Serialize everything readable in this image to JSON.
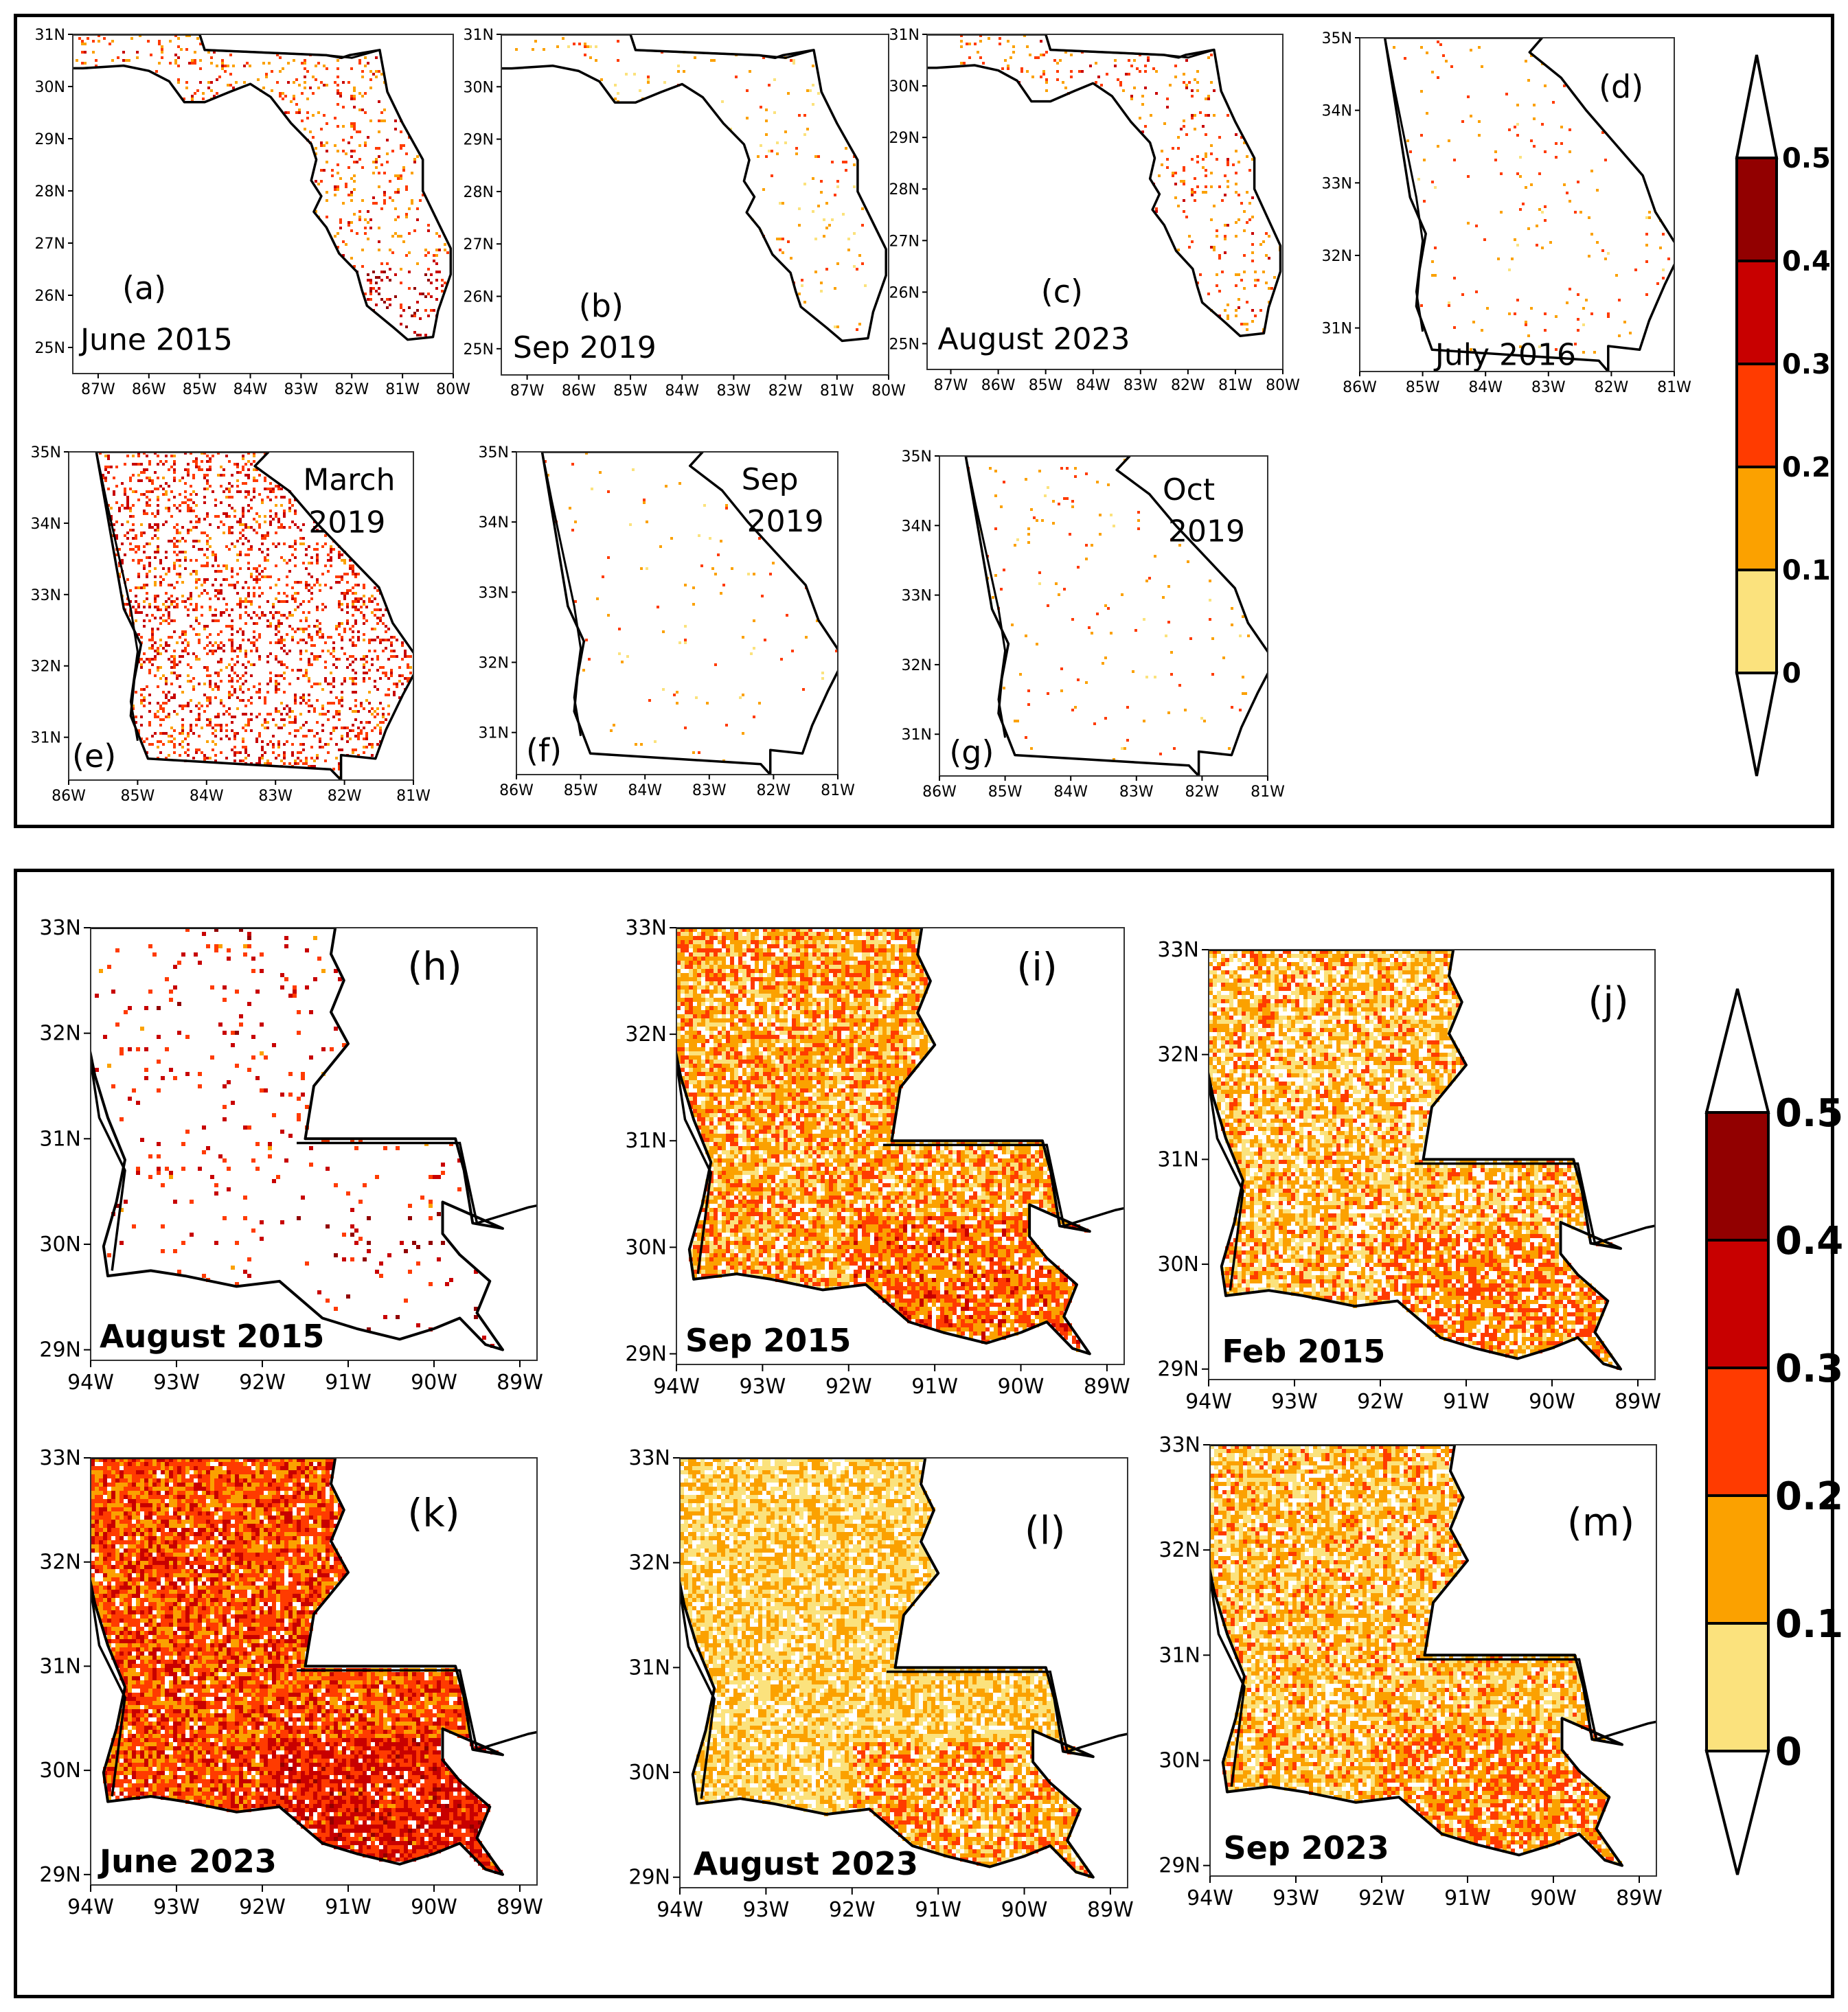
{
  "figure": {
    "top_group": "Florida and Georgia",
    "bottom_group": "Louisiana"
  },
  "colors": {
    "c0": "#fbe27d",
    "c1": "#fba100",
    "c2": "#ff3b00",
    "c3": "#c80000",
    "c4": "#920000"
  },
  "chart_data": [
    {
      "type": "heatmap",
      "id": "a",
      "panel_label": "(a)",
      "date_label": "June 2015",
      "region": "Florida",
      "xlim": [
        -87.5,
        -80
      ],
      "ylim": [
        24.5,
        31
      ],
      "xticks": [
        "87W",
        "86W",
        "85W",
        "84W",
        "83W",
        "82W",
        "81W",
        "80W"
      ],
      "yticks": [
        "25N",
        "26N",
        "27N",
        "28N",
        "29N",
        "30N",
        "31N"
      ],
      "density": 0.11,
      "mean_level": 0.22
    },
    {
      "type": "heatmap",
      "id": "b",
      "panel_label": "(b)",
      "date_label": "Sep 2019",
      "region": "Florida",
      "xlim": [
        -87.5,
        -80
      ],
      "ylim": [
        24.5,
        31
      ],
      "xticks": [
        "87W",
        "86W",
        "85W",
        "84W",
        "83W",
        "82W",
        "81W",
        "80W"
      ],
      "yticks": [
        "25N",
        "26N",
        "27N",
        "28N",
        "29N",
        "30N",
        "31N"
      ],
      "density": 0.03,
      "mean_level": 0.15
    },
    {
      "type": "heatmap",
      "id": "c",
      "panel_label": "(c)",
      "date_label": "August 2023",
      "region": "Florida",
      "xlim": [
        -87.5,
        -80
      ],
      "ylim": [
        24.5,
        31
      ],
      "xticks": [
        "87W",
        "86W",
        "85W",
        "84W",
        "83W",
        "82W",
        "81W",
        "80W"
      ],
      "yticks": [
        "25N",
        "26N",
        "27N",
        "28N",
        "29N",
        "30N",
        "31N"
      ],
      "density": 0.07,
      "mean_level": 0.22
    },
    {
      "type": "heatmap",
      "id": "d",
      "panel_label": "(d)",
      "date_label": "July 2016",
      "region": "Georgia",
      "xlim": [
        -86,
        -81
      ],
      "ylim": [
        30.4,
        35
      ],
      "xticks": [
        "86W",
        "85W",
        "84W",
        "83W",
        "82W",
        "81W"
      ],
      "yticks": [
        "31N",
        "32N",
        "33N",
        "34N",
        "35N"
      ],
      "density": 0.02,
      "mean_level": 0.18
    },
    {
      "type": "heatmap",
      "id": "e",
      "panel_label": "(e)",
      "date_label": "March 2019",
      "region": "Georgia",
      "xlim": [
        -86,
        -81
      ],
      "ylim": [
        30.4,
        35
      ],
      "xticks": [
        "86W",
        "85W",
        "84W",
        "83W",
        "82W",
        "81W"
      ],
      "yticks": [
        "31N",
        "32N",
        "33N",
        "34N",
        "35N"
      ],
      "density": 0.2,
      "mean_level": 0.28
    },
    {
      "type": "heatmap",
      "id": "f",
      "panel_label": "(f)",
      "date_label": "Sep 2019",
      "region": "Georgia",
      "xlim": [
        -86,
        -81
      ],
      "ylim": [
        30.4,
        35
      ],
      "xticks": [
        "86W",
        "85W",
        "84W",
        "83W",
        "82W",
        "81W"
      ],
      "yticks": [
        "31N",
        "32N",
        "33N",
        "34N",
        "35N"
      ],
      "density": 0.01,
      "mean_level": 0.15
    },
    {
      "type": "heatmap",
      "id": "g",
      "panel_label": "(g)",
      "date_label": "Oct 2019",
      "region": "Georgia",
      "xlim": [
        -86,
        -81
      ],
      "ylim": [
        30.4,
        35
      ],
      "xticks": [
        "86W",
        "85W",
        "84W",
        "83W",
        "82W",
        "81W"
      ],
      "yticks": [
        "31N",
        "32N",
        "33N",
        "34N",
        "35N"
      ],
      "density": 0.015,
      "mean_level": 0.18
    },
    {
      "type": "heatmap",
      "id": "h",
      "panel_label": "(h)",
      "date_label": "August 2015",
      "region": "Louisiana",
      "xlim": [
        -94,
        -88.8
      ],
      "ylim": [
        28.9,
        33
      ],
      "xticks": [
        "94W",
        "93W",
        "92W",
        "91W",
        "90W",
        "89W"
      ],
      "yticks": [
        "29N",
        "30N",
        "31N",
        "32N",
        "33N"
      ],
      "density": 0.04,
      "mean_level": 0.3
    },
    {
      "type": "heatmap",
      "id": "i",
      "panel_label": "(i)",
      "date_label": "Sep 2015",
      "region": "Louisiana",
      "xlim": [
        -94,
        -88.8
      ],
      "ylim": [
        28.9,
        33
      ],
      "xticks": [
        "94W",
        "93W",
        "92W",
        "91W",
        "90W",
        "89W"
      ],
      "yticks": [
        "29N",
        "30N",
        "31N",
        "32N",
        "33N"
      ],
      "density": 0.85,
      "mean_level": 0.15
    },
    {
      "type": "heatmap",
      "id": "j",
      "panel_label": "(j)",
      "date_label": "Feb 2015",
      "region": "Louisiana",
      "xlim": [
        -94,
        -88.8
      ],
      "ylim": [
        28.9,
        33
      ],
      "xticks": [
        "94W",
        "93W",
        "92W",
        "91W",
        "90W",
        "89W"
      ],
      "yticks": [
        "29N",
        "30N",
        "31N",
        "32N",
        "33N"
      ],
      "density": 0.75,
      "mean_level": 0.13
    },
    {
      "type": "heatmap",
      "id": "k",
      "panel_label": "(k)",
      "date_label": "June 2023",
      "region": "Louisiana",
      "xlim": [
        -94,
        -88.8
      ],
      "ylim": [
        28.9,
        33
      ],
      "xticks": [
        "94W",
        "93W",
        "92W",
        "91W",
        "90W",
        "89W"
      ],
      "yticks": [
        "29N",
        "30N",
        "31N",
        "32N",
        "33N"
      ],
      "density": 0.92,
      "mean_level": 0.24
    },
    {
      "type": "heatmap",
      "id": "l",
      "panel_label": "(l)",
      "date_label": "August 2023",
      "region": "Louisiana",
      "xlim": [
        -94,
        -88.8
      ],
      "ylim": [
        28.9,
        33
      ],
      "xticks": [
        "94W",
        "93W",
        "92W",
        "91W",
        "90W",
        "89W"
      ],
      "yticks": [
        "29N",
        "30N",
        "31N",
        "32N",
        "33N"
      ],
      "density": 0.8,
      "mean_level": 0.09
    },
    {
      "type": "heatmap",
      "id": "m",
      "panel_label": "(m)",
      "date_label": "Sep 2023",
      "region": "Louisiana",
      "xlim": [
        -94,
        -88.8
      ],
      "ylim": [
        28.9,
        33
      ],
      "xticks": [
        "94W",
        "93W",
        "92W",
        "91W",
        "90W",
        "89W"
      ],
      "yticks": [
        "29N",
        "30N",
        "31N",
        "32N",
        "33N"
      ],
      "density": 0.82,
      "mean_level": 0.12
    }
  ],
  "colorbar_top": {
    "labels": [
      "0",
      "0.1",
      "0.2",
      "0.3",
      "0.4",
      "0.5"
    ]
  },
  "colorbar_bottom": {
    "labels": [
      "0",
      "0.1",
      "0.2",
      "0.3",
      "0.4",
      "0.5"
    ]
  }
}
